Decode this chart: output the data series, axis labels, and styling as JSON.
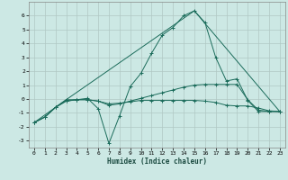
{
  "xlabel": "Humidex (Indice chaleur)",
  "background_color": "#cce8e4",
  "grid_color": "#b0c8c4",
  "line_color": "#1a6b5a",
  "xlim": [
    -0.5,
    23.5
  ],
  "ylim": [
    -3.5,
    7.0
  ],
  "yticks": [
    -3,
    -2,
    -1,
    0,
    1,
    2,
    3,
    4,
    5,
    6
  ],
  "xticks": [
    0,
    1,
    2,
    3,
    4,
    5,
    6,
    7,
    8,
    9,
    10,
    11,
    12,
    13,
    14,
    15,
    16,
    17,
    18,
    19,
    20,
    21,
    22,
    23
  ],
  "series": [
    {
      "x": [
        0,
        1,
        2,
        3,
        4,
        5,
        6,
        7,
        8,
        9,
        10,
        11,
        12,
        13,
        14,
        15,
        16,
        17,
        18,
        19,
        20,
        21,
        22,
        23
      ],
      "y": [
        -1.7,
        -1.3,
        -0.6,
        -0.05,
        -0.05,
        0.05,
        -0.7,
        -3.2,
        -1.2,
        0.9,
        1.85,
        3.3,
        4.6,
        5.15,
        6.0,
        6.35,
        5.5,
        3.0,
        1.3,
        1.45,
        -0.1,
        -0.9,
        -0.9,
        -0.9
      ],
      "marker": true
    },
    {
      "x": [
        0,
        1,
        2,
        3,
        4,
        5,
        6,
        7,
        8,
        9,
        10,
        11,
        12,
        13,
        14,
        15,
        16,
        17,
        18,
        19,
        20,
        21,
        22,
        23
      ],
      "y": [
        -1.7,
        -1.3,
        -0.6,
        -0.15,
        -0.05,
        -0.05,
        -0.15,
        -0.45,
        -0.35,
        -0.15,
        0.05,
        0.25,
        0.45,
        0.65,
        0.85,
        1.0,
        1.05,
        1.05,
        1.05,
        1.05,
        -0.05,
        -0.8,
        -0.9,
        -0.9
      ],
      "marker": true
    },
    {
      "x": [
        0,
        1,
        2,
        3,
        4,
        5,
        6,
        7,
        8,
        9,
        10,
        11,
        12,
        13,
        14,
        15,
        16,
        17,
        18,
        19,
        20,
        21,
        22,
        23
      ],
      "y": [
        -1.7,
        -1.3,
        -0.6,
        -0.15,
        -0.05,
        -0.05,
        -0.15,
        -0.35,
        -0.3,
        -0.2,
        -0.1,
        -0.1,
        -0.1,
        -0.1,
        -0.1,
        -0.1,
        -0.15,
        -0.25,
        -0.45,
        -0.5,
        -0.5,
        -0.65,
        -0.85,
        -0.9
      ],
      "marker": true
    },
    {
      "x": [
        0,
        3,
        15,
        23
      ],
      "y": [
        -1.7,
        -0.05,
        6.35,
        -0.9
      ],
      "marker": false
    }
  ]
}
